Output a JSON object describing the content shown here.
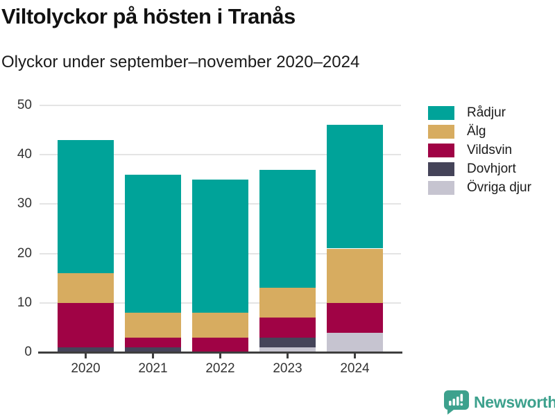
{
  "header": {
    "title": "Viltolyckor på hösten i Tranås",
    "subtitle": "Olyckor under september–november 2020–2024"
  },
  "branding": {
    "logo_text": "Newsworthy",
    "logo_color": "#3da18d",
    "logo_icon": "speech-bubble-bar-chart"
  },
  "colors": {
    "background": "#ffffff",
    "gridline": "#e4e4e4",
    "axis": "#3e3e3e",
    "tick_text": "#333333",
    "title_text": "#111111"
  },
  "chart_data": {
    "type": "bar",
    "stacked": true,
    "title": "Viltolyckor på hösten i Tranås",
    "subtitle": "Olyckor under september–november 2020–2024",
    "categories": [
      "2020",
      "2021",
      "2022",
      "2023",
      "2024"
    ],
    "series": [
      {
        "name": "Rådjur",
        "color": "#00a399",
        "values": [
          27,
          28,
          27,
          24,
          25
        ]
      },
      {
        "name": "Älg",
        "color": "#d7ac60",
        "values": [
          6,
          5,
          5,
          6,
          11
        ]
      },
      {
        "name": "Vildsvin",
        "color": "#a00345",
        "values": [
          9,
          2,
          3,
          4,
          6
        ]
      },
      {
        "name": "Dovhjort",
        "color": "#454459",
        "values": [
          1,
          1,
          0,
          2,
          0
        ]
      },
      {
        "name": "Övriga djur",
        "color": "#c6c4d0",
        "values": [
          0,
          0,
          0,
          1,
          4
        ]
      }
    ],
    "stack_order_bottom_to_top": [
      "Övriga djur",
      "Dovhjort",
      "Vildsvin",
      "Älg",
      "Rådjur"
    ],
    "totals": [
      43,
      36,
      35,
      37,
      46
    ],
    "xlabel": "",
    "ylabel": "",
    "ylim": [
      0,
      50
    ],
    "yticks": [
      0,
      10,
      20,
      30,
      40,
      50
    ],
    "grid": "horizontal",
    "legend_position": "right"
  }
}
